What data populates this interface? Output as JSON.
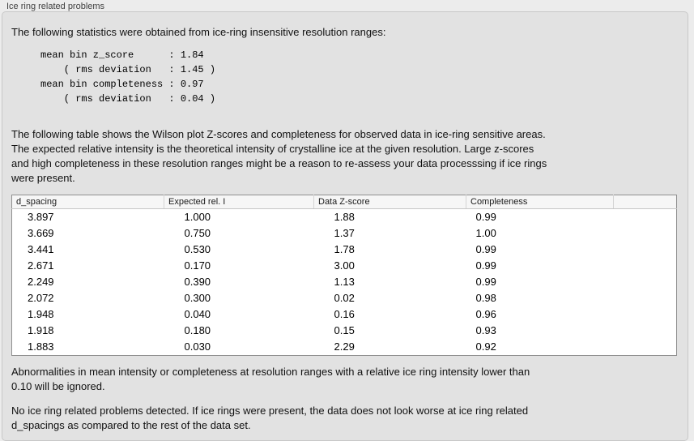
{
  "panel": {
    "title": "Ice ring related problems"
  },
  "stats": {
    "intro": "The following statistics were obtained from ice-ring insensitive resolution ranges:",
    "lines": [
      "mean bin z_score      : 1.84",
      "    ( rms deviation   : 1.45 )",
      "mean bin completeness : 0.97",
      "    ( rms deviation   : 0.04 )"
    ]
  },
  "table_intro": [
    "The following table shows the Wilson plot Z-scores and completeness for observed data in ice-ring sensitive areas.",
    "The expected relative intensity is the theoretical intensity of crystalline ice at the given resolution. Large z-scores",
    "and high completeness in these resolution ranges might be a reason to re-assess your data processsing if ice rings",
    "were present."
  ],
  "table": {
    "columns": [
      "d_spacing",
      "Expected rel. I",
      "Data Z-score",
      "Completeness"
    ],
    "rows": [
      [
        "3.897",
        "1.000",
        "1.88",
        "0.99"
      ],
      [
        "3.669",
        "0.750",
        "1.37",
        "1.00"
      ],
      [
        "3.441",
        "0.530",
        "1.78",
        "0.99"
      ],
      [
        "2.671",
        "0.170",
        "3.00",
        "0.99"
      ],
      [
        "2.249",
        "0.390",
        "1.13",
        "0.99"
      ],
      [
        "2.072",
        "0.300",
        "0.02",
        "0.98"
      ],
      [
        "1.948",
        "0.040",
        "0.16",
        "0.96"
      ],
      [
        "1.918",
        "0.180",
        "0.15",
        "0.93"
      ],
      [
        "1.883",
        "0.030",
        "2.29",
        "0.92"
      ]
    ]
  },
  "notes": {
    "ignore_note": [
      "Abnormalities in mean intensity or completeness at resolution ranges with a relative ice ring intensity lower than",
      "0.10 will be ignored."
    ],
    "result_note": [
      "No ice ring related problems detected. If ice rings were present, the data does not look worse at ice ring related",
      "d_spacings as compared to the rest of the data set."
    ]
  },
  "colors": {
    "page_bg": "#ececec",
    "panel_bg": "#e2e2e2",
    "panel_border": "#c8c8c8",
    "table_bg": "#ffffff",
    "table_border": "#8f8f8f",
    "table_header_bg": "#f6f6f6",
    "text": "#111111",
    "title_text": "#3f3f3f"
  }
}
